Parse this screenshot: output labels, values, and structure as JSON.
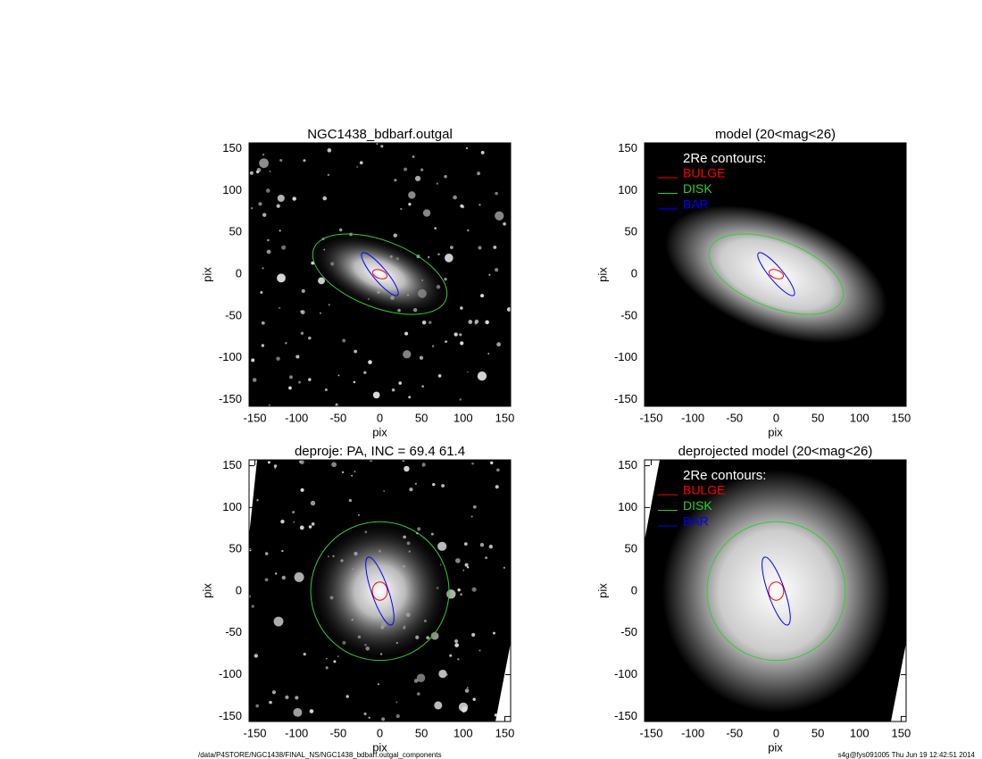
{
  "chart_data": [
    {
      "type": "image",
      "title": "NGC1438_bdbarf.outgal",
      "xlabel": "pix",
      "ylabel": "pix",
      "xlim": [
        -157,
        157
      ],
      "ylim": [
        -158,
        157
      ],
      "xticks": [
        -150,
        -100,
        -50,
        0,
        50,
        100,
        150
      ],
      "yticks": [
        -150,
        -100,
        -50,
        0,
        50,
        100,
        150
      ],
      "contours": [
        {
          "color": "#ff0000",
          "center": [
            0,
            0
          ],
          "semi_axes": [
            9,
            5
          ],
          "angle": -20
        },
        {
          "color": "#33cc33",
          "center": [
            0,
            0
          ],
          "semi_axes": [
            85,
            40
          ],
          "angle": -21
        },
        {
          "color": "#0000ff",
          "center": [
            0,
            0
          ],
          "semi_axes": [
            33,
            8
          ],
          "angle": -50
        }
      ]
    },
    {
      "type": "image",
      "title": "model (20<mag<26)",
      "xlabel": "pix",
      "ylabel": "pix",
      "xlim": [
        -158,
        156
      ],
      "ylim": [
        -158,
        157
      ],
      "xticks": [
        -150,
        -100,
        -50,
        0,
        50,
        100,
        150
      ],
      "yticks": [
        -150,
        -100,
        -50,
        0,
        50,
        100,
        150
      ],
      "legend_title": "2Re contours:",
      "contours": [
        {
          "name": "BULGE",
          "color": "#ff0000",
          "center": [
            0,
            0
          ],
          "semi_axes": [
            9,
            5
          ],
          "angle": -20
        },
        {
          "name": "DISK",
          "color": "#33cc33",
          "center": [
            0,
            0
          ],
          "semi_axes": [
            85,
            40
          ],
          "angle": -21
        },
        {
          "name": "BAR",
          "color": "#0000ff",
          "center": [
            0,
            0
          ],
          "semi_axes": [
            33,
            8
          ],
          "angle": -50
        }
      ]
    },
    {
      "type": "image",
      "title": "deproje: PA, INC =  69.4    61.4",
      "xlabel": "pix",
      "ylabel": "pix",
      "xlim": [
        -157,
        157
      ],
      "ylim": [
        -156,
        157
      ],
      "xticks": [
        -150,
        -100,
        -50,
        0,
        50,
        100,
        150
      ],
      "yticks": [
        -150,
        -100,
        -50,
        0,
        50,
        100,
        150
      ],
      "contours": [
        {
          "color": "#ff0000",
          "center": [
            0,
            0
          ],
          "semi_axes": [
            11,
            9
          ],
          "angle": 90
        },
        {
          "color": "#33cc33",
          "center": [
            0,
            0
          ],
          "semi_axes": [
            83,
            83
          ],
          "angle": 0
        },
        {
          "color": "#0000ff",
          "center": [
            0,
            0
          ],
          "semi_axes": [
            43,
            10
          ],
          "angle": -71
        }
      ]
    },
    {
      "type": "image",
      "title": "deprojected model (20<mag<26)",
      "xlabel": "pix",
      "ylabel": "pix",
      "xlim": [
        -158,
        156
      ],
      "ylim": [
        -156,
        157
      ],
      "xticks": [
        -150,
        -100,
        -50,
        0,
        50,
        100,
        150
      ],
      "yticks": [
        -150,
        -100,
        -50,
        0,
        50,
        100,
        150
      ],
      "legend_title": "2Re contours:",
      "contours": [
        {
          "name": "BULGE",
          "color": "#ff0000",
          "center": [
            0,
            0
          ],
          "semi_axes": [
            11,
            9
          ],
          "angle": 90
        },
        {
          "name": "DISK",
          "color": "#33cc33",
          "center": [
            0,
            0
          ],
          "semi_axes": [
            83,
            83
          ],
          "angle": 0
        },
        {
          "name": "BAR",
          "color": "#0000ff",
          "center": [
            0,
            0
          ],
          "semi_axes": [
            43,
            10
          ],
          "angle": -71
        }
      ]
    }
  ],
  "footer": {
    "left": "/data/P4STORE/NGC1438/FINAL_NS/NGC1438_bdbarf.outgal_components",
    "right": "s4g@fys091005  Thu Jun 19 12:42:51 2014"
  }
}
